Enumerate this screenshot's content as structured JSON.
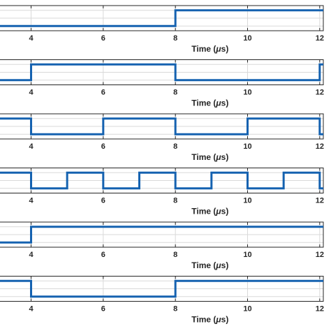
{
  "chart_data": [
    {
      "type": "line",
      "xlabel": "Time (μs)",
      "xlim": [
        3.1,
        12.1
      ],
      "ylim": [
        -0.3,
        1.3
      ],
      "xticks": [
        4,
        6,
        8,
        10,
        12
      ],
      "grid": true,
      "color": "#1562b0",
      "x": [
        3.1,
        8,
        8,
        12.1
      ],
      "y": [
        0,
        0,
        1,
        1
      ]
    },
    {
      "type": "line",
      "xlabel": "Time (μs)",
      "xlim": [
        3.1,
        12.1
      ],
      "ylim": [
        -0.3,
        1.3
      ],
      "xticks": [
        4,
        6,
        8,
        10,
        12
      ],
      "grid": true,
      "color": "#1562b0",
      "x": [
        3.1,
        4,
        4,
        8,
        8,
        12,
        12,
        12.1
      ],
      "y": [
        0,
        0,
        1,
        1,
        0,
        0,
        1,
        1
      ]
    },
    {
      "type": "line",
      "xlabel": "Time (μs)",
      "xlim": [
        3.1,
        12.1
      ],
      "ylim": [
        -0.3,
        1.3
      ],
      "xticks": [
        4,
        6,
        8,
        10,
        12
      ],
      "grid": true,
      "color": "#1562b0",
      "x": [
        3.1,
        4,
        4,
        6,
        6,
        8,
        8,
        10,
        10,
        12,
        12,
        12.1
      ],
      "y": [
        1,
        1,
        0,
        0,
        1,
        1,
        0,
        0,
        1,
        1,
        0,
        0
      ]
    },
    {
      "type": "line",
      "xlabel": "Time (μs)",
      "xlim": [
        3.1,
        12.1
      ],
      "ylim": [
        -0.3,
        1.3
      ],
      "xticks": [
        4,
        6,
        8,
        10,
        12
      ],
      "grid": true,
      "color": "#1562b0",
      "x": [
        3.1,
        4,
        4,
        5,
        5,
        6,
        6,
        7,
        7,
        8,
        8,
        9,
        9,
        10,
        10,
        11,
        11,
        12,
        12,
        12.1
      ],
      "y": [
        1,
        1,
        0,
        0,
        1,
        1,
        0,
        0,
        1,
        1,
        0,
        0,
        1,
        1,
        0,
        0,
        1,
        1,
        0,
        0
      ]
    },
    {
      "type": "line",
      "xlabel": "Time (μs)",
      "xlim": [
        3.1,
        12.1
      ],
      "ylim": [
        -0.3,
        1.3
      ],
      "xticks": [
        4,
        6,
        8,
        10,
        12
      ],
      "grid": true,
      "color": "#1562b0",
      "x": [
        3.1,
        4,
        4,
        12.1
      ],
      "y": [
        0,
        0,
        1,
        1
      ]
    },
    {
      "type": "line",
      "xlabel": "Time (μs)",
      "xlim": [
        3.1,
        12.1
      ],
      "ylim": [
        -0.3,
        1.3
      ],
      "xticks": [
        4,
        6,
        8,
        10,
        12
      ],
      "grid": true,
      "color": "#1562b0",
      "x": [
        3.1,
        4,
        4,
        8,
        8,
        12.1
      ],
      "y": [
        1,
        1,
        0,
        0,
        1,
        1
      ]
    }
  ]
}
